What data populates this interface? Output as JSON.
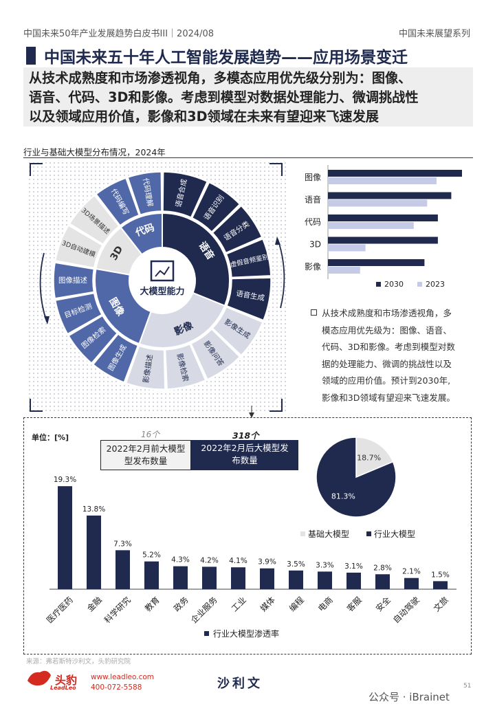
{
  "header": {
    "left": "中国未来50年产业发展趋势白皮书III｜2024/08",
    "right": "中国未来展望系列"
  },
  "title": "中国未来五十年人工智能发展趋势——应用场景变迁",
  "summary": [
    "从技术成熟度和市场渗透视角，多模态应用优先级分别为：图像、",
    "语音、代码、3D和影像。考虑到模型对数据处理能力、微调挑战性",
    "以及领域应用价值，影像和3D领域在未来有望迎来飞速发展"
  ],
  "chart_title": "行业与基础大模型分布情况，2024年",
  "wheel": {
    "center_label": "大模型能力",
    "sectors": [
      {
        "name": "语音",
        "color": "#1f2a4e",
        "text_color": "#ffffff",
        "items": [
          "语音合成",
          "语音识别",
          "语音分类",
          "虚假音频鉴别",
          "语音生成"
        ]
      },
      {
        "name": "影像",
        "color": "#d7dae4",
        "text_color": "#1f2a4e",
        "items": [
          "影像生成",
          "影像问答",
          "影像检索",
          "影像描述"
        ]
      },
      {
        "name": "图像",
        "color": "#5068a8",
        "text_color": "#ffffff",
        "items": [
          "图像生成",
          "图像检索",
          "目标检测",
          "图像描述"
        ]
      },
      {
        "name": "3D",
        "color": "#e4e4e4",
        "text_color": "#333333",
        "items": [
          "3D自动建模",
          "3D场景描述"
        ]
      },
      {
        "name": "代码",
        "color": "#5068a8",
        "text_color": "#ffffff",
        "items": [
          "代码编写",
          "代码理解"
        ]
      }
    ]
  },
  "bullet_text": [
    "从技术成熟度和市场渗透视角，多",
    "模态应用优先级为：图像、语音、",
    "代码、3D和影像。考虑到模型对数",
    "据的处理能力、微调的挑战性以及",
    "领域的应用价值。预计到2030年,",
    "影像和3D领域有望迎来飞速发展。"
  ],
  "bottom": {
    "unit_label": "单位：[%]",
    "count_before": "16个",
    "count_after": "318个",
    "label_before": [
      "2022年2月前大模型",
      "型发布数量"
    ],
    "label_after": [
      "2022年2月后大模型发",
      "布数量"
    ]
  },
  "footer": {
    "source": "来源：弗若斯特沙利文，头豹研究院",
    "logo": "头豹",
    "logo_sub": "LeadLeo",
    "web": "www.leadleo.com",
    "tel": "400-072-5588",
    "partner": "沙利文",
    "page": "51",
    "wechat": "公众号 · iBrainet"
  },
  "chart_data": [
    {
      "type": "bar",
      "orientation": "horizontal",
      "categories": [
        "图像",
        "语音",
        "代码",
        "3D",
        "影像"
      ],
      "series": [
        {
          "name": "2030",
          "color": "#1f2a4e",
          "values": [
            100,
            92,
            82,
            82,
            72
          ]
        },
        {
          "name": "2023",
          "color": "#c5cbe6",
          "values": [
            81,
            74,
            64,
            28,
            24
          ]
        }
      ],
      "xlim": [
        0,
        100
      ],
      "legend": "bottom"
    },
    {
      "type": "pie",
      "labels": [
        "基础大模型",
        "行业大模型"
      ],
      "values": [
        18.7,
        81.3
      ],
      "value_labels": [
        "18.7%",
        "81.3%"
      ],
      "colors": [
        "#e3e3e3",
        "#1f2a4e"
      ],
      "legend": "bottom"
    },
    {
      "type": "bar",
      "categories": [
        "医疗医药",
        "金融",
        "科学研究",
        "教育",
        "政务",
        "企业服务",
        "工业",
        "媒体",
        "编程",
        "电商",
        "客服",
        "安全",
        "自动驾驶",
        "文旅"
      ],
      "series": [
        {
          "name": "行业大模型渗透率",
          "color": "#1f2a4e",
          "values": [
            19.3,
            13.8,
            7.3,
            5.2,
            4.3,
            4.2,
            4.1,
            3.9,
            3.5,
            3.3,
            3.1,
            2.8,
            2.1,
            1.5
          ],
          "value_labels": [
            "19.3%",
            "13.8%",
            "7.3%",
            "5.2%",
            "4.3%",
            "4.2%",
            "4.1%",
            "3.9%",
            "3.5%",
            "3.3%",
            "3.1%",
            "2.8%",
            "2.1%",
            "1.5%"
          ]
        }
      ],
      "ylim": [
        0,
        20
      ],
      "legend": "bottom"
    }
  ]
}
